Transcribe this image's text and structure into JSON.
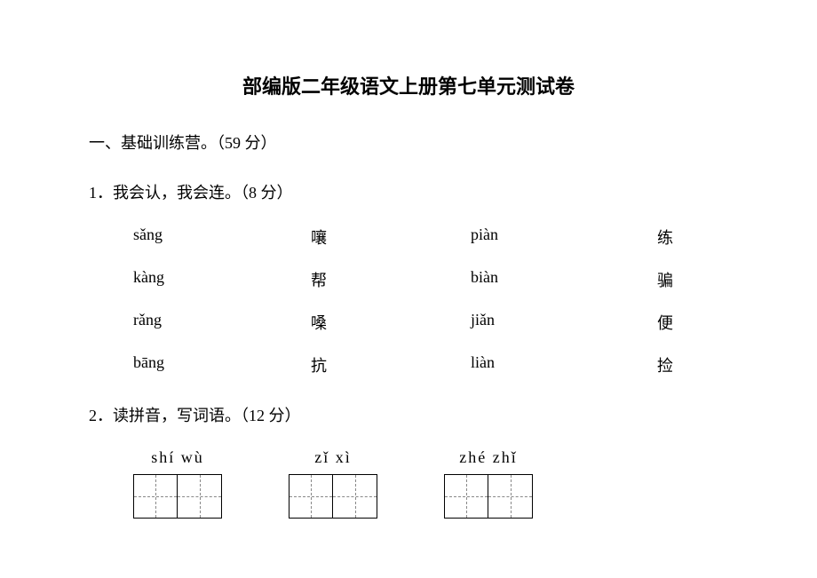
{
  "title": "部编版二年级语文上册第七单元测试卷",
  "section1": {
    "header": "一、基础训练营。（59 分）",
    "q1": {
      "text": "1．我会认，我会连。（8 分）",
      "rows": [
        {
          "pinyin": "sǎng",
          "char1": "嚷",
          "pinyin2": "piàn",
          "char2": "练"
        },
        {
          "pinyin": "kàng",
          "char1": "帮",
          "pinyin2": "biàn",
          "char2": "骗"
        },
        {
          "pinyin": "rǎng",
          "char1": "嗓",
          "pinyin2": "jiǎn",
          "char2": "便"
        },
        {
          "pinyin": "bāng",
          "char1": "抗",
          "pinyin2": "liàn",
          "char2": "捡"
        }
      ]
    },
    "q2": {
      "text": "2．读拼音，写词语。（12 分）",
      "items": [
        {
          "pinyin": "shí wù"
        },
        {
          "pinyin": "zǐ  xì"
        },
        {
          "pinyin": "zhé  zhǐ"
        }
      ]
    }
  },
  "colors": {
    "background": "#ffffff",
    "text": "#000000",
    "dashed": "#888888"
  }
}
